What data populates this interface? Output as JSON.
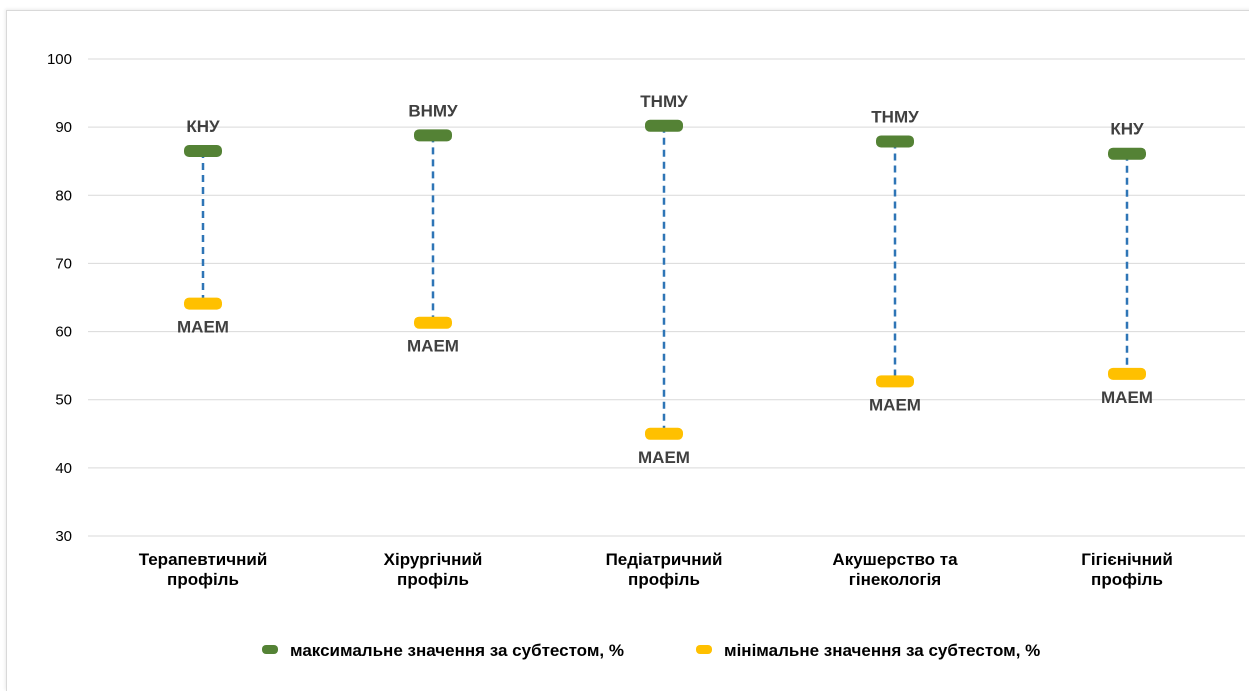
{
  "chart_data": {
    "type": "scatter",
    "title": "",
    "xlabel": "",
    "ylabel": "",
    "ylim": [
      30,
      100
    ],
    "y_ticks": [
      30,
      40,
      50,
      60,
      70,
      80,
      90,
      100
    ],
    "grid": true,
    "legend_position": "bottom",
    "categories": [
      [
        "Терапевтичний",
        "профіль"
      ],
      [
        "Хірургічний",
        "профіль"
      ],
      [
        "Педіатричний",
        "профіль"
      ],
      [
        "Акушерство та",
        "гінекологія"
      ],
      [
        "Гігієнічний",
        "профіль"
      ]
    ],
    "series": [
      {
        "name": "максимальне значення за субтестом, %",
        "color": "#548235",
        "values": [
          86.5,
          88.8,
          90.2,
          87.9,
          86.1
        ],
        "labels": [
          "КНУ",
          "ВНМУ",
          "ТНМУ",
          "ТНМУ",
          "КНУ"
        ]
      },
      {
        "name": "мінімальне значення за субтестом, %",
        "color": "#ffc000",
        "values": [
          64.1,
          61.3,
          45.0,
          52.7,
          53.8
        ],
        "labels": [
          "МАЕМ",
          "МАЕМ",
          "МАЕМ",
          "МАЕМ",
          "МАЕМ"
        ]
      }
    ],
    "connector_color": "#2e75b6"
  }
}
